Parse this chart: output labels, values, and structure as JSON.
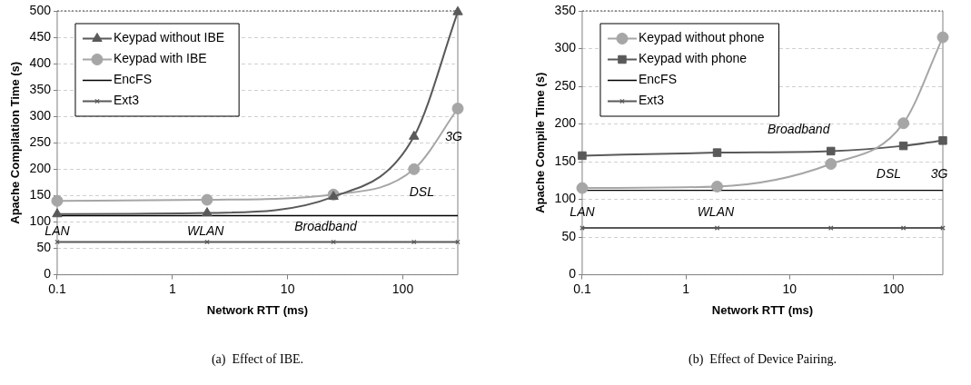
{
  "chart_data": [
    {
      "type": "line",
      "xlabel": "Network RTT (ms)",
      "ylabel": "Apache Compilation Time (s)",
      "log": "x",
      "xlim": [
        0.1,
        300
      ],
      "xticks": [
        0.1,
        1,
        10,
        100
      ],
      "ylim": [
        0,
        500
      ],
      "yticks": [
        0,
        50,
        100,
        150,
        200,
        250,
        300,
        350,
        400,
        450,
        500
      ],
      "grid": "y",
      "legend": "top left",
      "x": [
        0.1,
        2,
        25,
        125,
        300
      ],
      "series": [
        {
          "name": "Keypad without IBE",
          "color": "#595959",
          "marker": "triangle",
          "values": [
            115,
            117,
            148,
            262,
            498
          ]
        },
        {
          "name": "Keypad with IBE",
          "color": "#a6a6a6",
          "marker": "circle",
          "values": [
            140,
            142,
            152,
            200,
            315
          ]
        },
        {
          "name": "EncFS",
          "color": "#000000",
          "marker": "none",
          "values": [
            112,
            112,
            112,
            112,
            112
          ]
        },
        {
          "name": "Ext3",
          "color": "#595959",
          "marker": "cross",
          "values": [
            62,
            62,
            62,
            62,
            62
          ]
        }
      ],
      "annotations": [
        "LAN",
        "WLAN",
        "Broadband",
        "DSL",
        "3G",
        "(a)  Effect of IBE."
      ]
    },
    {
      "type": "line",
      "xlabel": "Network RTT (ms)",
      "ylabel": "Apache Compile Time (s)",
      "log": "x",
      "xlim": [
        0.1,
        300
      ],
      "xticks": [
        0.1,
        1,
        10,
        100
      ],
      "ylim": [
        0,
        350
      ],
      "yticks": [
        0,
        50,
        100,
        150,
        200,
        250,
        300,
        350
      ],
      "grid": "y",
      "legend": "top left",
      "x": [
        0.1,
        2,
        25,
        125,
        300
      ],
      "series": [
        {
          "name": "Keypad without phone",
          "color": "#a6a6a6",
          "marker": "circle",
          "values": [
            115,
            117,
            147,
            201,
            315
          ]
        },
        {
          "name": "Keypad with phone",
          "color": "#595959",
          "marker": "square",
          "values": [
            158,
            162,
            164,
            171,
            178
          ]
        },
        {
          "name": "EncFS",
          "color": "#000000",
          "marker": "none",
          "values": [
            112,
            112,
            112,
            112,
            112
          ]
        },
        {
          "name": "Ext3",
          "color": "#595959",
          "marker": "cross",
          "values": [
            62,
            62,
            62,
            62,
            62
          ]
        }
      ],
      "annotations": [
        "LAN",
        "WLAN",
        "Broadband",
        "DSL",
        "3G",
        "(b)  Effect of Device Pairing."
      ]
    }
  ]
}
